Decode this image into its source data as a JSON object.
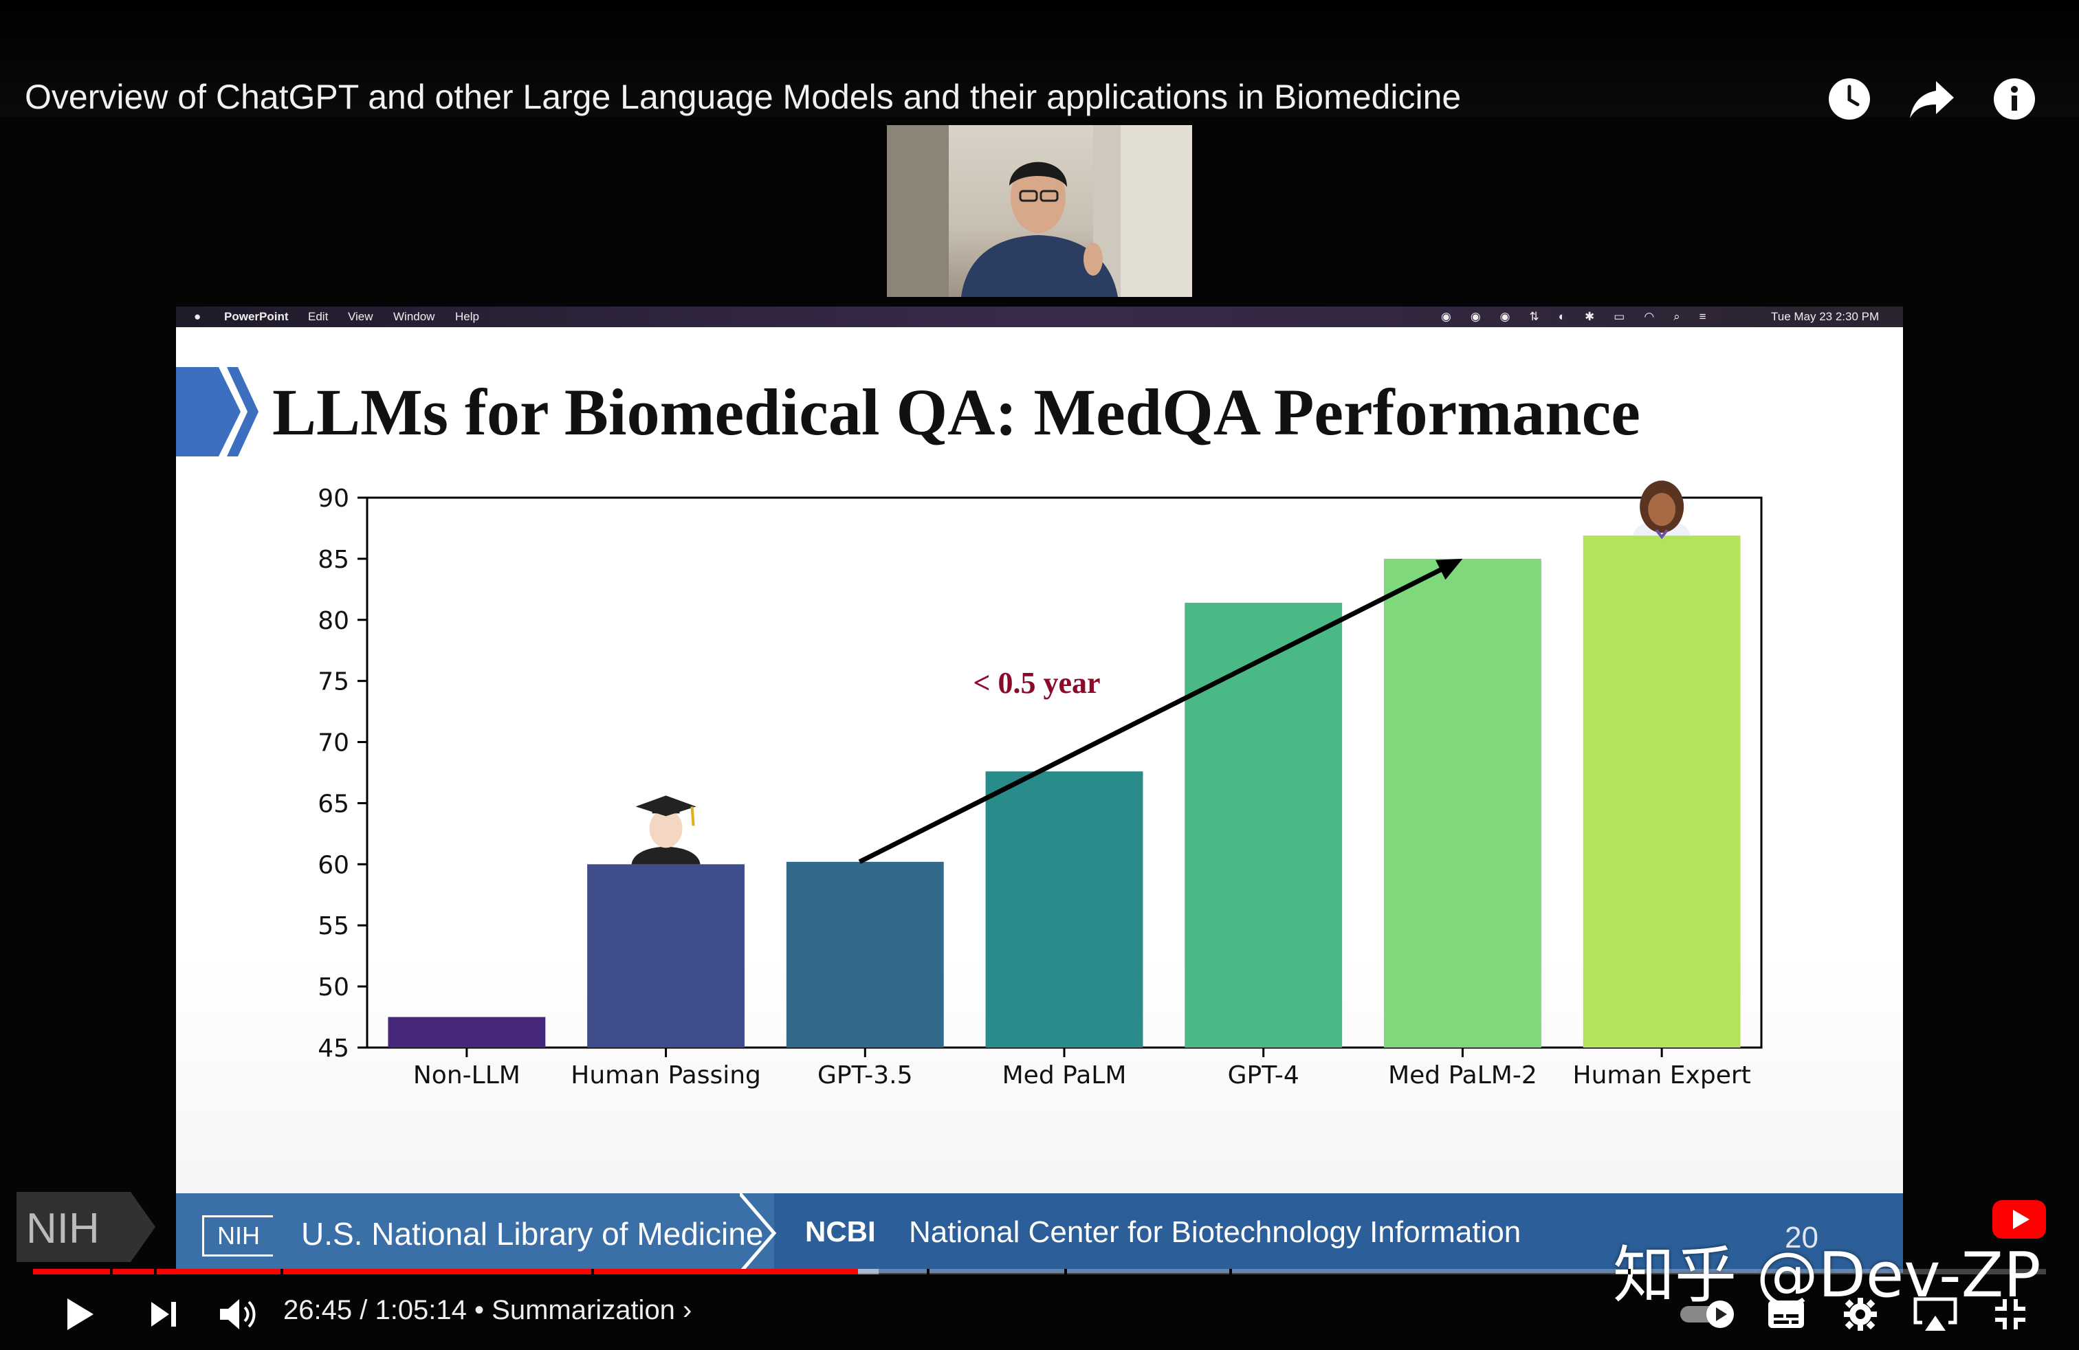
{
  "video": {
    "title": "Overview of ChatGPT and other Large Language Models and their applications in Biomedicine"
  },
  "top_actions": [
    {
      "icon": "clock-icon",
      "label": "Watch later"
    },
    {
      "icon": "share-icon",
      "label": "Share"
    },
    {
      "icon": "info-icon",
      "label": "Info"
    }
  ],
  "mac_menubar": {
    "app": "PowerPoint",
    "menus": [
      "Edit",
      "View",
      "Window",
      "Help"
    ],
    "clock": "Tue May 23  2:30 PM"
  },
  "slide": {
    "title": "LLMs for Biomedical QA: MedQA Performance",
    "annotation": "< 0.5 year",
    "page_number": "20",
    "footer_left": "U.S. National Library of Medicine",
    "footer_nih": "NIH",
    "footer_ncbi": "NCBI",
    "footer_right": "National Center for Biotechnology Information"
  },
  "chart_data": {
    "type": "bar",
    "title": "",
    "xlabel": "",
    "ylabel": "",
    "ylim": [
      45,
      90
    ],
    "yticks": [
      45,
      50,
      55,
      60,
      65,
      70,
      75,
      80,
      85,
      90
    ],
    "categories": [
      "Non-LLM",
      "Human Passing",
      "GPT-3.5",
      "Med PaLM",
      "GPT-4",
      "Med PaLM-2",
      "Human Expert"
    ],
    "values": [
      47.5,
      60,
      60.2,
      67.6,
      81.4,
      85,
      86.9
    ],
    "colors": [
      "#46287a",
      "#3f4d8a",
      "#336a8c",
      "#2a8c8a",
      "#4bb985",
      "#7fd87c",
      "#b5e25b"
    ],
    "grid": false,
    "legend": "none"
  },
  "corner_logo": "NIH",
  "player": {
    "time_current": "26:45",
    "time_total": "1:05:14",
    "time_separator": " / ",
    "chapter": "Summarization",
    "progress_fraction": 0.41,
    "buffer_fraction": 0.42
  },
  "watermark": "知乎 @Dev-ZP",
  "colors": {
    "progress": "#ff0000",
    "footer": "#2c5f99",
    "annotation": "#8b0a2a"
  }
}
